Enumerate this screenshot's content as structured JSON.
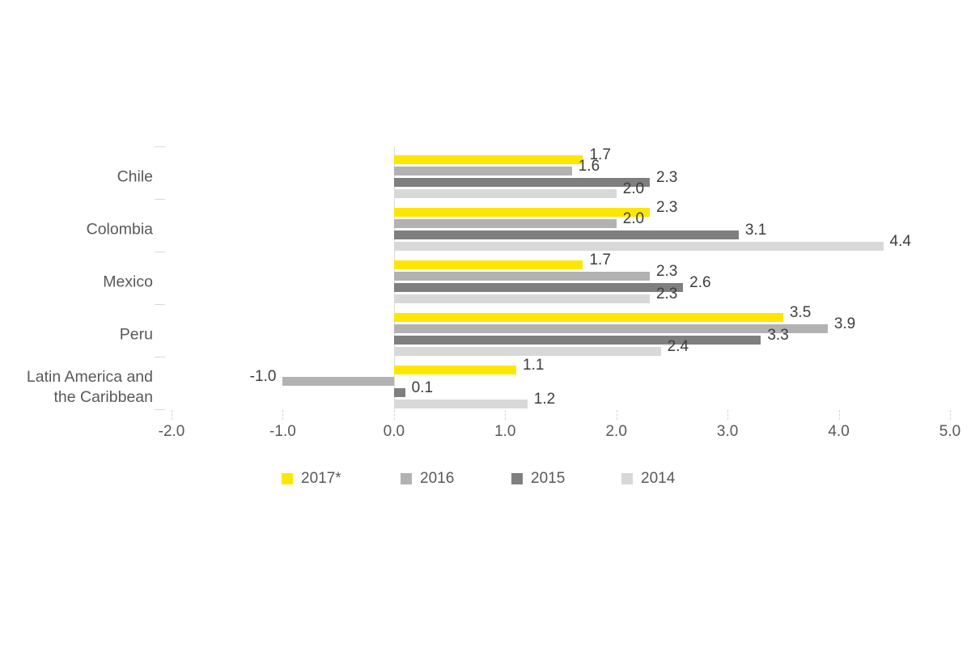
{
  "chart_data": {
    "type": "bar",
    "orientation": "horizontal",
    "title": "",
    "xlabel": "",
    "ylabel": "",
    "categories": [
      "Chile",
      "Colombia",
      "Mexico",
      "Peru",
      "Latin America and\nthe Caribbean"
    ],
    "series": [
      {
        "name": "2017*",
        "color": "#FFE600",
        "values": [
          1.7,
          2.3,
          1.7,
          3.5,
          1.1
        ]
      },
      {
        "name": "2016",
        "color": "#B2B2B2",
        "values": [
          1.6,
          2.0,
          2.3,
          3.9,
          -1.0
        ]
      },
      {
        "name": "2015",
        "color": "#7F7F7F",
        "values": [
          2.3,
          3.1,
          2.6,
          3.3,
          0.1
        ]
      },
      {
        "name": "2014",
        "color": "#D8D8D8",
        "values": [
          2.0,
          4.4,
          2.3,
          2.4,
          1.2
        ]
      }
    ],
    "xlim": [
      -2.0,
      5.0
    ],
    "x_tick_values": [
      -2,
      -1,
      0,
      1,
      2,
      3,
      4,
      5
    ],
    "x_tick_labels": [
      "-2.0",
      "-1.0",
      "0.0",
      "1.0",
      "2.0",
      "3.0",
      "4.0",
      "5.0"
    ],
    "value_label_decimals": 1,
    "grid": false,
    "legend_position": "bottom",
    "colors": {
      "axis_line": "#D9D9D9",
      "tick_mark": "#D6D6D6",
      "axis_text": "#595959",
      "value_text": "#3D3D3D",
      "background": "#FFFFFF"
    }
  }
}
